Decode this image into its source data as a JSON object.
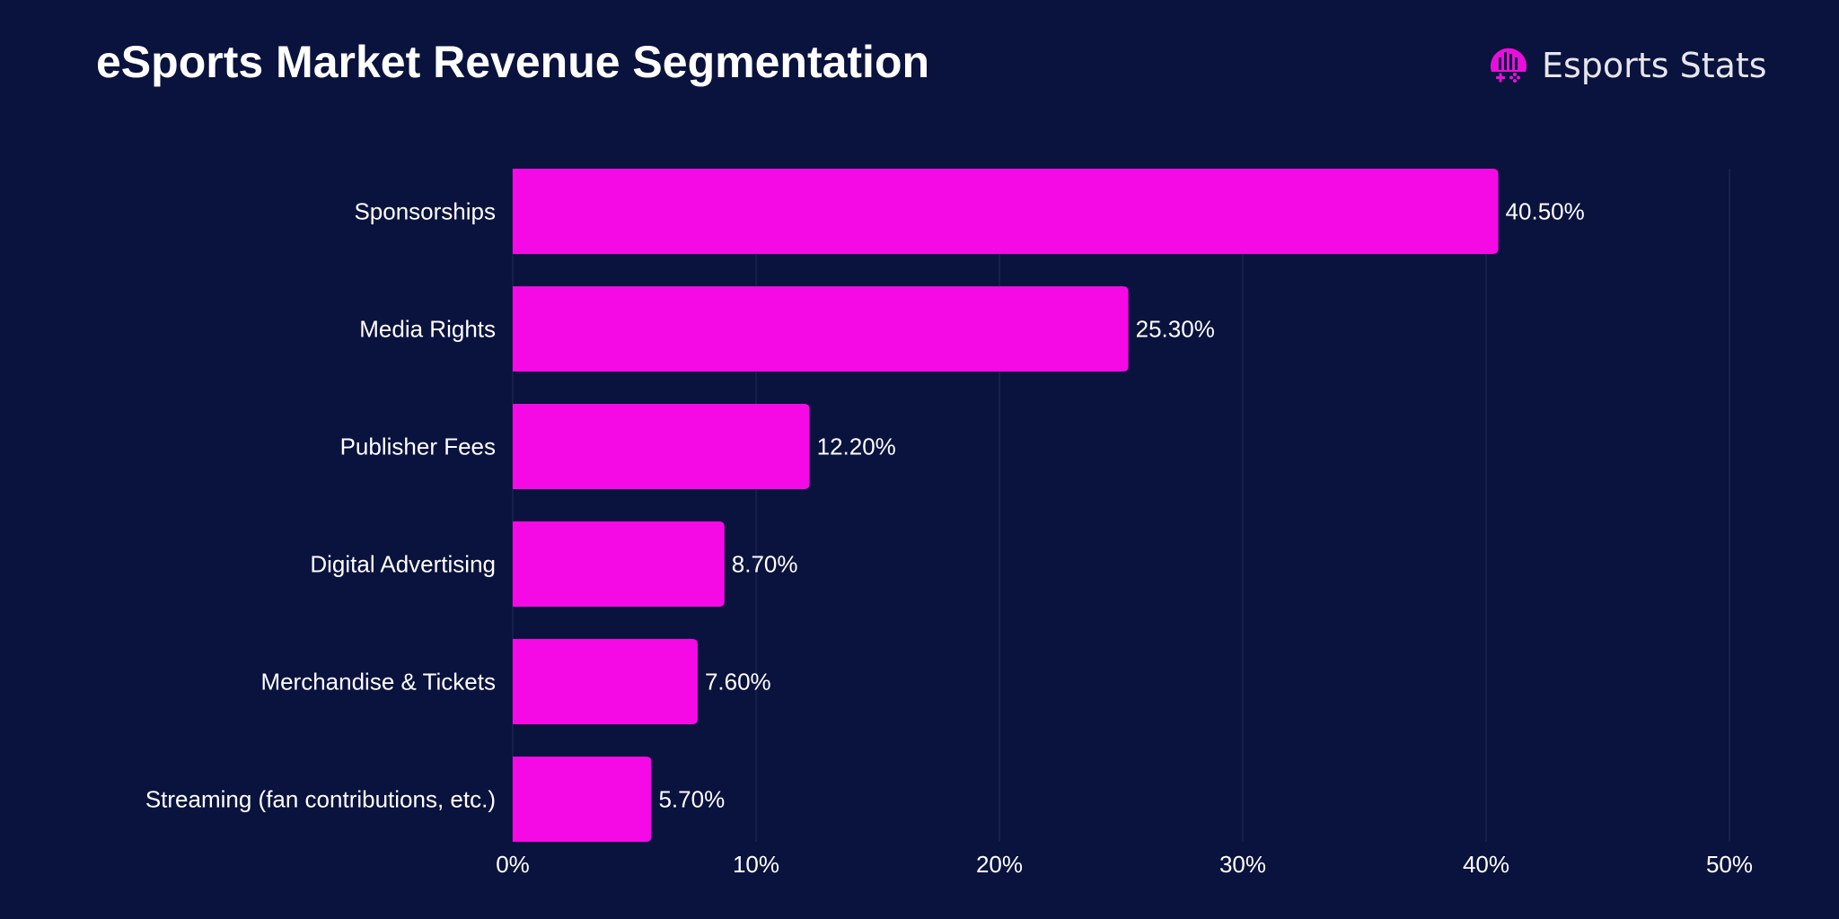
{
  "brand": {
    "name": "Esports Stats",
    "accent": "#f50ae6",
    "background": "#0a123e"
  },
  "chart_data": {
    "type": "bar",
    "orientation": "horizontal",
    "title": "eSports Market Revenue Segmentation",
    "categories": [
      "Sponsorships",
      "Media Rights",
      "Publisher Fees",
      "Digital Advertising",
      "Merchandise & Tickets",
      "Streaming (fan contributions, etc.)"
    ],
    "values": [
      40.5,
      25.3,
      12.2,
      8.7,
      7.6,
      5.7
    ],
    "data_labels": [
      "40.50%",
      "25.30%",
      "12.20%",
      "8.70%",
      "7.60%",
      "5.70%"
    ],
    "xlim": [
      0,
      50
    ],
    "xticks": [
      "0%",
      "10%",
      "20%",
      "30%",
      "40%",
      "50%"
    ],
    "grid": true,
    "legend": "none",
    "bar_color": "#f50ae6"
  }
}
